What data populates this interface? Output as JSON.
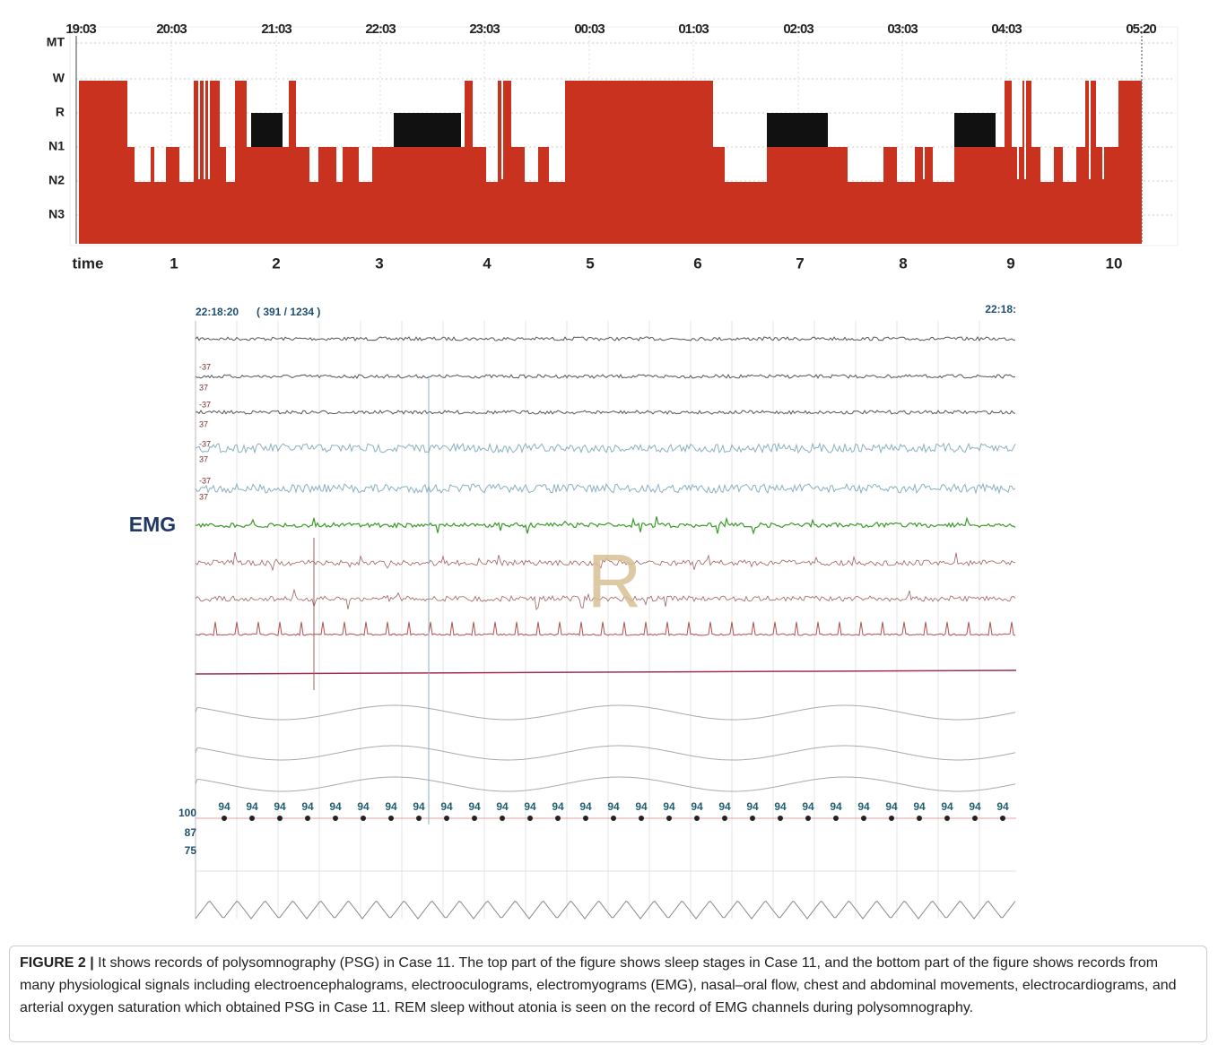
{
  "hypnogram": {
    "clock_times": [
      "19:03",
      "20:03",
      "21:03",
      "22:03",
      "23:03",
      "00:03",
      "01:03",
      "02:03",
      "03:03",
      "04:03",
      "05:20"
    ],
    "stages": [
      "MT",
      "W",
      "R",
      "N1",
      "N2",
      "N3"
    ],
    "x_axis_label": "time",
    "hour_labels": [
      "1",
      "2",
      "3",
      "4",
      "5",
      "6",
      "7",
      "8",
      "9",
      "10"
    ]
  },
  "psg": {
    "start_time": "22:18:20",
    "epoch": "( 391 / 1234 )",
    "end_time": "22:18:",
    "channel_label": "EMG",
    "stage_marker": "R",
    "scale_labels": [
      "-37",
      "37",
      "-37",
      "37",
      "-37",
      "37",
      "-37",
      "37"
    ],
    "spo2_values": [
      94,
      94,
      94,
      94,
      94,
      94,
      94,
      94,
      94,
      94,
      94,
      94,
      94,
      94,
      94,
      94,
      94,
      94,
      94,
      94,
      94,
      94,
      94,
      94,
      94,
      94,
      94,
      94,
      94
    ],
    "spo2_axis": [
      100,
      87,
      75
    ]
  },
  "caption": {
    "label": "FIGURE 2 |",
    "text": "It shows records of polysomnography (PSG) in Case 11. The top part of the figure shows sleep stages in Case 11, and the bottom part of the figure shows records from many physiological signals including electroencephalograms, electrooculograms, electromyograms (EMG), nasal–oral flow, chest and abdominal movements, electrocardiograms, and arterial oxygen saturation which obtained PSG in Case 11. REM sleep without atonia is seen on the record of EMG channels during polysomnography."
  }
}
